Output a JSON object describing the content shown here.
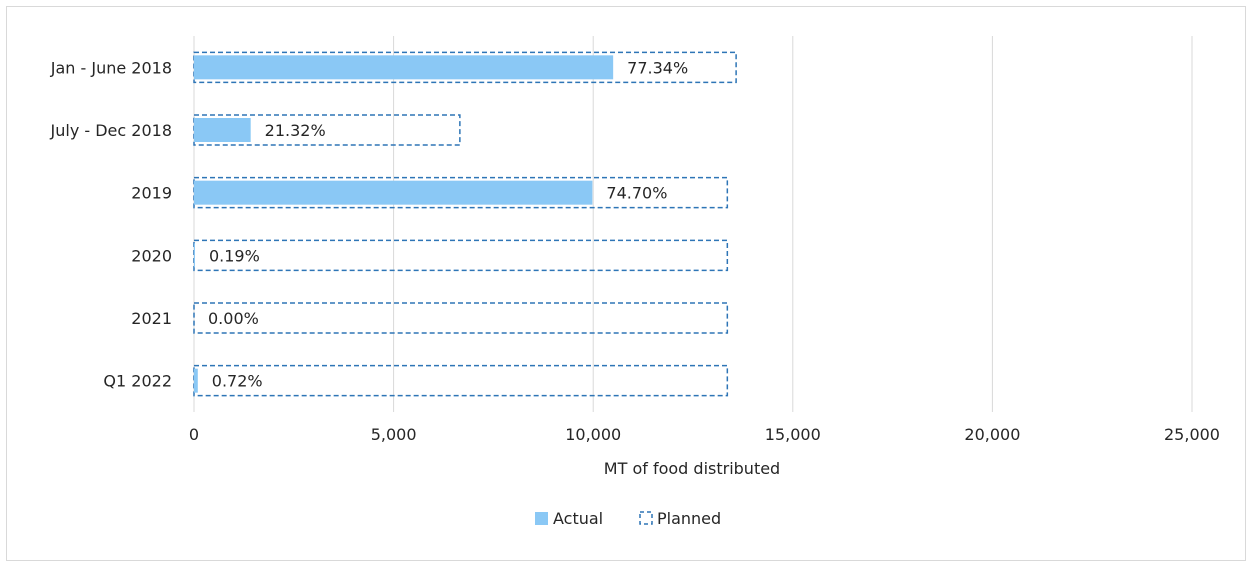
{
  "chart_data": {
    "type": "bar",
    "orientation": "horizontal",
    "categories": [
      "Jan - June 2018",
      "July - Dec 2018",
      "2019",
      "2020",
      "2021",
      "Q1 2022"
    ],
    "series": [
      {
        "name": "Actual",
        "values": [
          10500,
          1420,
          9980,
          25,
          0,
          95
        ],
        "color": "#8ac8f5"
      },
      {
        "name": "Planned",
        "values": [
          13580,
          6660,
          13360,
          13360,
          13360,
          13360
        ],
        "color": "#2e75b6"
      }
    ],
    "data_labels": [
      "77.34%",
      "21.32%",
      "74.70%",
      "0.19%",
      "0.00%",
      "0.72%"
    ],
    "xlabel": "MT of food distributed",
    "ylabel": "",
    "xlim": [
      0,
      25000
    ],
    "x_ticks": [
      0,
      5000,
      10000,
      15000,
      20000,
      25000
    ],
    "x_tick_labels": [
      "0",
      "5,000",
      "10,000",
      "15,000",
      "20,000",
      "25,000"
    ],
    "grid": true,
    "legend_position": "bottom"
  }
}
